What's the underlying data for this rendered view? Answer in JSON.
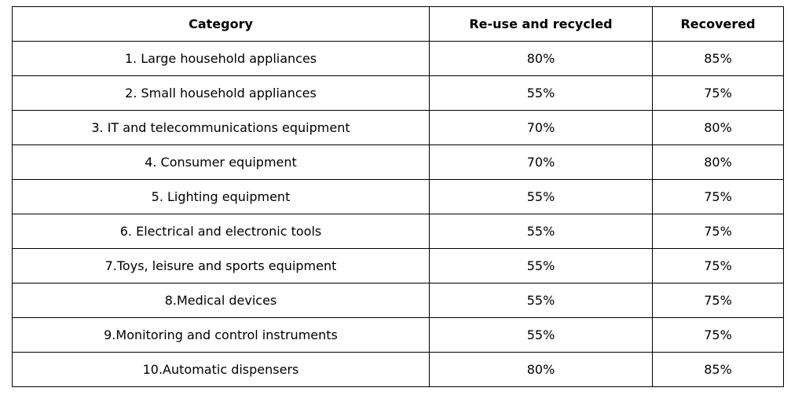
{
  "table": {
    "headers": [
      "Category",
      "Re-use and recycled",
      "Recovered"
    ],
    "rows": [
      {
        "category": "1. Large household appliances",
        "reuse": "80%",
        "recovered": "85%",
        "align": "center"
      },
      {
        "category": "2. Small household appliances",
        "reuse": "55%",
        "recovered": "75%",
        "align": "center"
      },
      {
        "category": "3. IT and telecommunications equipment",
        "reuse": "70%",
        "recovered": "80%",
        "align": "center"
      },
      {
        "category": "4. Consumer equipment",
        "reuse": "70%",
        "recovered": "80%",
        "align": "center"
      },
      {
        "category": "5. Lighting equipment",
        "reuse": "55%",
        "recovered": "75%",
        "align": "center"
      },
      {
        "category": "6. Electrical and electronic tools",
        "reuse": "55%",
        "recovered": "75%",
        "align": "center"
      },
      {
        "category": "7.Toys, leisure and sports equipment",
        "reuse": "55%",
        "recovered": "75%",
        "align": "left"
      },
      {
        "category": "8.Medical devices",
        "reuse": "55%",
        "recovered": "75%",
        "align": "left"
      },
      {
        "category": "9.Monitoring and control instruments",
        "reuse": "55%",
        "recovered": "75%",
        "align": "left"
      },
      {
        "category": "10.Automatic dispensers",
        "reuse": "80%",
        "recovered": "85%",
        "align": "left"
      }
    ]
  }
}
